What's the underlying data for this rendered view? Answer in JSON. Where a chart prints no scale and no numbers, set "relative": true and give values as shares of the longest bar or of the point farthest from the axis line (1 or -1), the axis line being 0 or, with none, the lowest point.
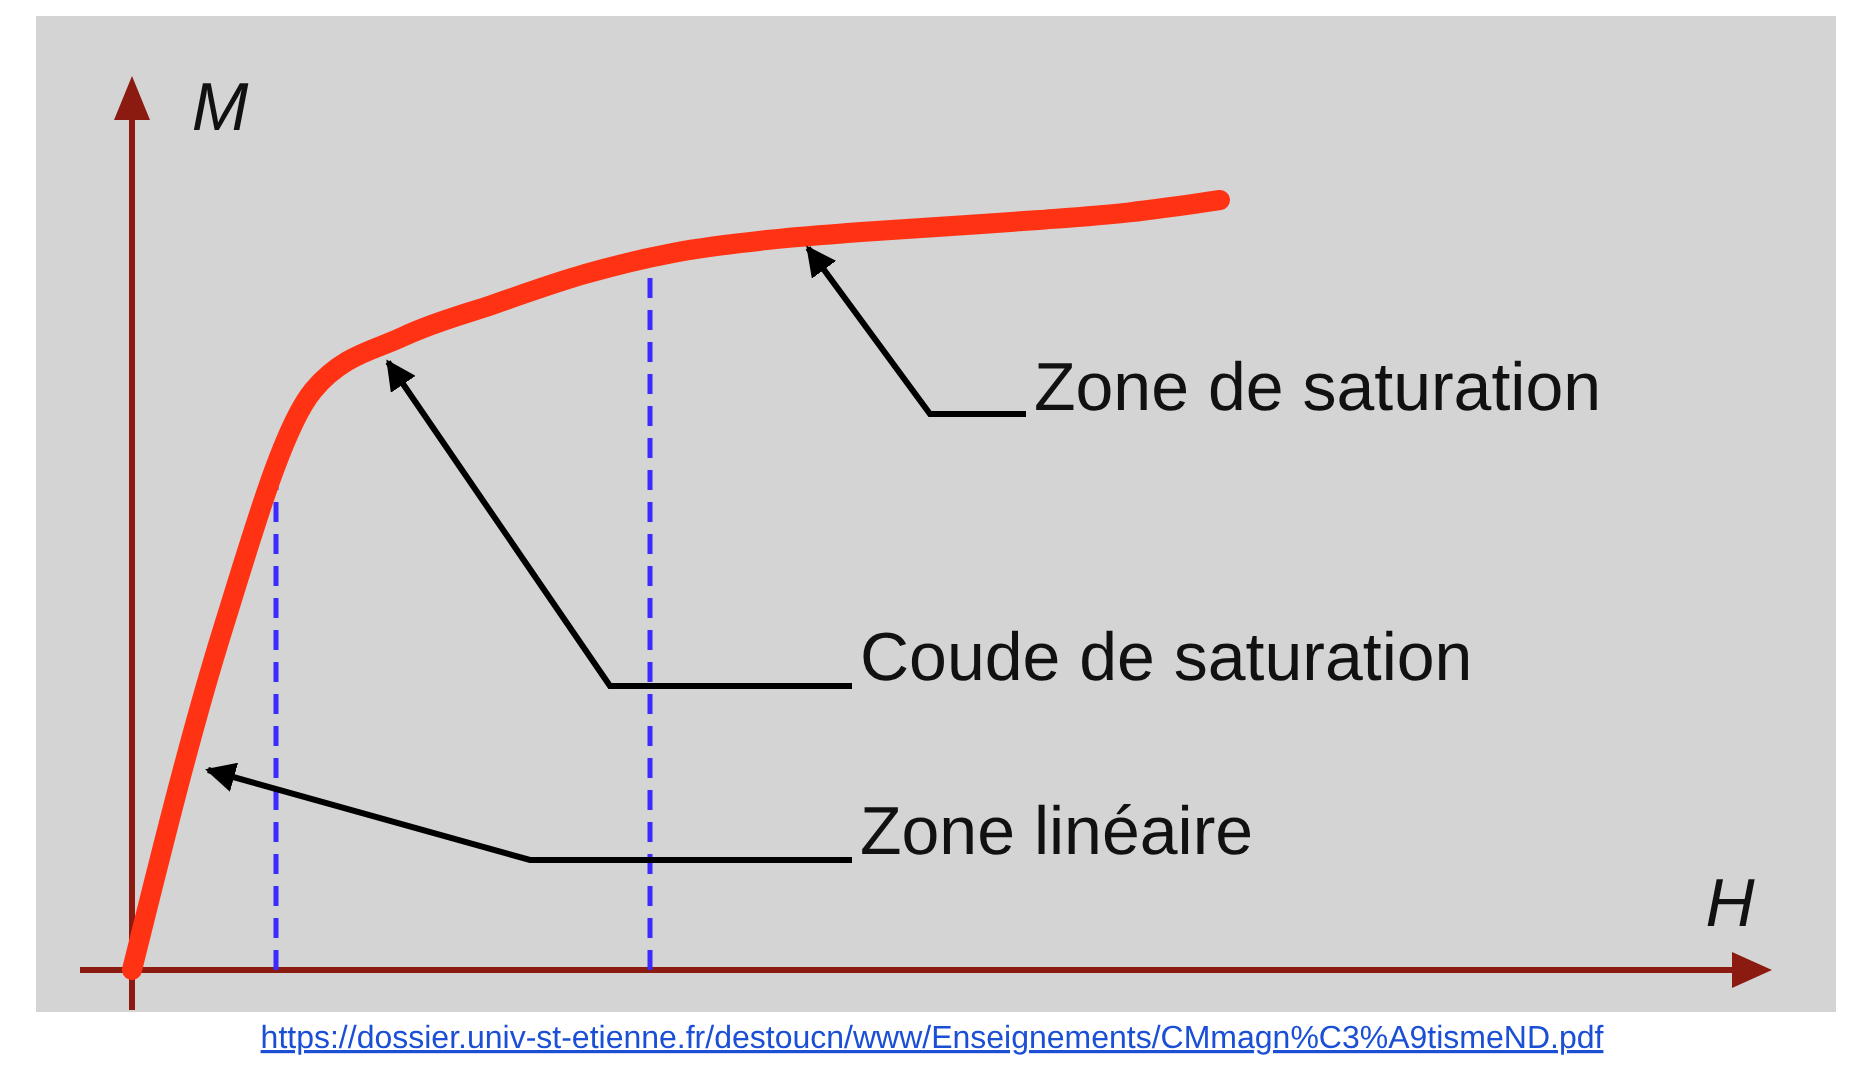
{
  "chart_data": {
    "type": "line",
    "relative": true,
    "ylabel": "M",
    "categories": [
      null,
      null,
      null,
      null,
      null,
      null,
      null,
      null,
      null,
      null,
      null,
      null,
      null
    ],
    "series": [
      {
        "color": "#ff3314",
        "values": [
          0,
          0.442,
          0.753,
          0.823,
          0.865,
          0.904,
          0.932,
          0.948,
          0.958,
          0.966,
          0.974,
          0.984,
          1
        ]
      }
    ],
    "annotations": [
      "Zone de saturation",
      "Coude de saturation",
      "Zone linéaire",
      "https://dossier.univ-st-etienne.fr/destoucn/www/Enseignements/CMmagn%C3%A9tismeND.pdf",
      "H"
    ],
    "marker": "none",
    "line_style": "solid"
  }
}
